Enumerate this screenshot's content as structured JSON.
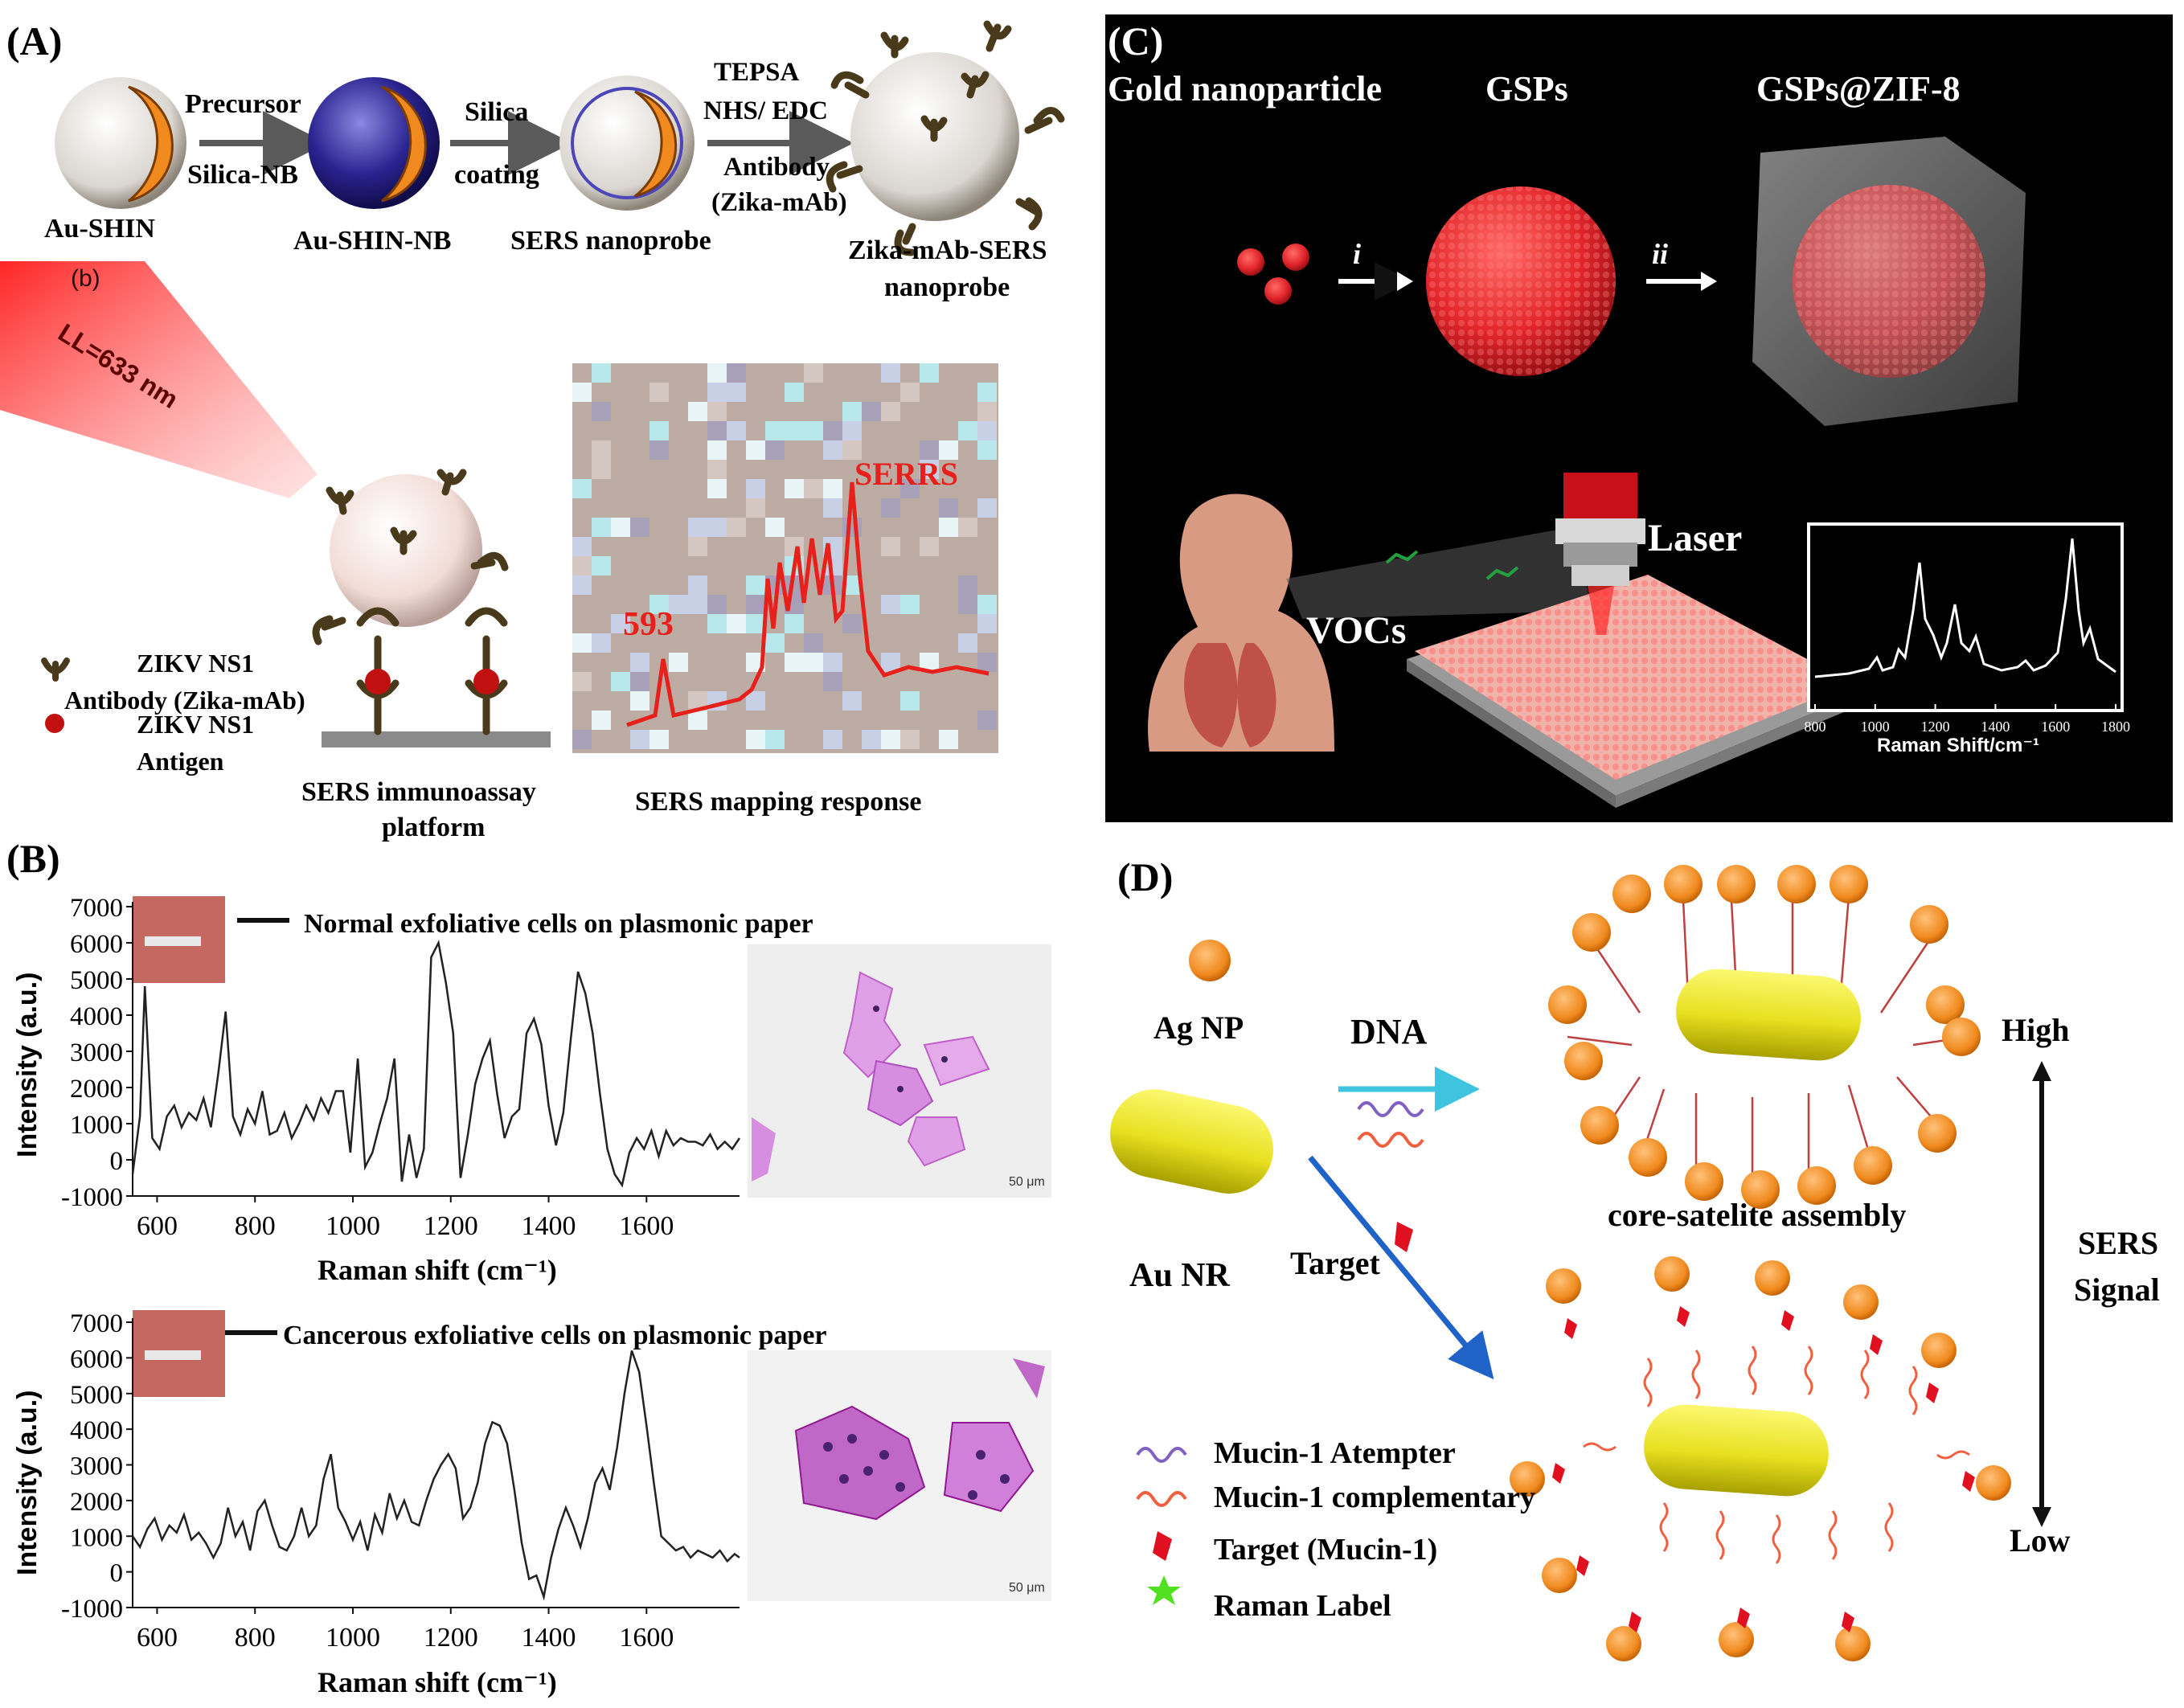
{
  "panel_a": {
    "label": "(A)",
    "sublabel": "(b)",
    "steps": {
      "au_shin": "Au-SHIN",
      "au_shin_nb": "Au-SHIN-NB",
      "sers_nanoprobe": "SERS nanoprobe",
      "zika_probe_line1": "Zika-mAb-SERS",
      "zika_probe_line2": "nanoprobe"
    },
    "arrows": {
      "a1_top": "Precursor",
      "a1_bottom": "Silica-NB",
      "a2_top": "Silica",
      "a2_bottom": "coating",
      "a3_line1": "TEPSA",
      "a3_line2": "NHS/ EDC",
      "a3_line3": "Antibody",
      "a3_line4": "(Zika-mAb)"
    },
    "laser": "LL=633 nm",
    "legend": {
      "antibody_line1": "ZIKV NS1",
      "antibody_line2": "Antibody (Zika-mAb)",
      "antigen_line1": "ZIKV NS1",
      "antigen_line2": "Antigen"
    },
    "platform_line1": "SERS immunoassay",
    "platform_line2": "platform",
    "mapping_caption": "SERS mapping response",
    "peak_label": "593",
    "serrs_label": "SERRS"
  },
  "panel_b": {
    "label": "(B)",
    "ylabel": "Intensity (a.u.)",
    "xlabel": "Raman shift (cm⁻¹)",
    "scale_bar": "50 μm",
    "spectrum_normal_legend": "Normal exfoliative cells on plasmonic paper",
    "spectrum_cancer_legend": "Cancerous exfoliative cells on plasmonic paper",
    "yticks": [
      "7000",
      "6000",
      "5000",
      "4000",
      "3000",
      "2000",
      "1000",
      "0",
      "-1000"
    ],
    "xticks": [
      "600",
      "800",
      "1000",
      "1200",
      "1400",
      "1600"
    ]
  },
  "panel_c": {
    "label": "(C)",
    "gold": "Gold nanoparticle",
    "gsps": "GSPs",
    "gsps_zif": "GSPs@ZIF-8",
    "step_i": "i",
    "step_ii": "ii",
    "laser": "Laser",
    "vocs": "VOCs",
    "inset_xlabel": "Raman Shift/cm⁻¹",
    "inset_xticks": [
      "800",
      "1000",
      "1200",
      "1400",
      "1600",
      "1800"
    ]
  },
  "panel_d": {
    "label": "(D)",
    "ag_np": "Ag NP",
    "dna": "DNA",
    "au_nr": "Au NR",
    "target": "Target",
    "assembly": "core-satelite assembly",
    "high": "High",
    "low": "Low",
    "signal_line1": "SERS",
    "signal_line2": "Signal",
    "legend": {
      "aptamer": "Mucin-1 Atempter",
      "complementary": "Mucin-1 complementary",
      "target": "Target (Mucin-1)",
      "label": "Raman Label"
    }
  },
  "colors": {
    "red_text": "#e8201c",
    "panel_c_bg": "#000000",
    "sphere_red": "#e2262c",
    "gold": "#e8e020",
    "silver_orange": "#f08a1e",
    "cyan_arrow": "#3fc4e0",
    "blue_arrow": "#1f62c8"
  },
  "chart_data": [
    {
      "type": "line",
      "title": "Normal exfoliative cells on plasmonic paper",
      "xlabel": "Raman shift (cm⁻¹)",
      "ylabel": "Intensity (a.u.)",
      "xlim": [
        550,
        1790
      ],
      "ylim": [
        -1000,
        7000
      ],
      "x": [
        550,
        565,
        575,
        590,
        605,
        620,
        635,
        650,
        665,
        680,
        695,
        710,
        725,
        740,
        755,
        770,
        785,
        800,
        815,
        830,
        845,
        860,
        875,
        890,
        905,
        920,
        935,
        950,
        965,
        980,
        995,
        1010,
        1025,
        1040,
        1055,
        1070,
        1085,
        1100,
        1115,
        1130,
        1145,
        1160,
        1175,
        1190,
        1205,
        1220,
        1235,
        1250,
        1265,
        1280,
        1295,
        1310,
        1325,
        1340,
        1355,
        1370,
        1385,
        1400,
        1415,
        1430,
        1445,
        1460,
        1475,
        1490,
        1505,
        1520,
        1535,
        1550,
        1565,
        1580,
        1595,
        1610,
        1625,
        1640,
        1655,
        1670,
        1685,
        1700,
        1715,
        1730,
        1745,
        1760,
        1775,
        1790
      ],
      "series": [
        {
          "values": [
            -400,
            1200,
            4800,
            600,
            300,
            1200,
            1500,
            900,
            1300,
            1100,
            1700,
            900,
            2400,
            4100,
            1200,
            700,
            1400,
            1000,
            1900,
            700,
            800,
            1300,
            600,
            1000,
            1500,
            1100,
            1700,
            1300,
            1900,
            1900,
            200,
            2800,
            -200,
            200,
            1000,
            1700,
            2800,
            -600,
            700,
            -500,
            300,
            5600,
            6000,
            4900,
            3500,
            -500,
            700,
            2100,
            2800,
            3300,
            1800,
            600,
            1200,
            1400,
            3500,
            3900,
            3200,
            1500,
            400,
            1300,
            3300,
            5200,
            4600,
            3500,
            1800,
            300,
            -400,
            -700,
            200,
            600,
            300,
            800,
            100,
            800,
            400,
            600,
            500,
            500,
            400,
            700,
            300,
            500,
            300,
            600
          ]
        }
      ]
    },
    {
      "type": "line",
      "title": "Cancerous exfoliative cells on plasmonic paper",
      "xlabel": "Raman shift (cm⁻¹)",
      "ylabel": "Intensity (a.u.)",
      "xlim": [
        550,
        1790
      ],
      "ylim": [
        -1000,
        7000
      ],
      "x": [
        550,
        565,
        580,
        595,
        610,
        625,
        640,
        655,
        670,
        685,
        700,
        715,
        730,
        745,
        760,
        775,
        790,
        805,
        820,
        835,
        850,
        865,
        880,
        895,
        910,
        925,
        940,
        955,
        970,
        985,
        1000,
        1015,
        1030,
        1045,
        1060,
        1075,
        1090,
        1105,
        1120,
        1135,
        1150,
        1165,
        1180,
        1195,
        1210,
        1225,
        1240,
        1255,
        1270,
        1285,
        1300,
        1315,
        1330,
        1345,
        1360,
        1375,
        1390,
        1405,
        1420,
        1435,
        1450,
        1465,
        1480,
        1495,
        1510,
        1525,
        1540,
        1555,
        1570,
        1585,
        1600,
        1615,
        1630,
        1645,
        1660,
        1675,
        1690,
        1705,
        1720,
        1735,
        1750,
        1765,
        1780,
        1790
      ],
      "series": [
        {
          "values": [
            1000,
            700,
            1200,
            1500,
            900,
            1300,
            1100,
            1600,
            900,
            1100,
            800,
            400,
            800,
            1800,
            1000,
            1400,
            600,
            1700,
            2000,
            1300,
            700,
            600,
            1000,
            1800,
            1000,
            1300,
            2600,
            3300,
            1800,
            1400,
            900,
            1400,
            600,
            1600,
            1100,
            2200,
            1500,
            2000,
            1400,
            1300,
            2000,
            2600,
            3000,
            3300,
            2900,
            1500,
            1800,
            2500,
            3600,
            4200,
            4100,
            3600,
            2300,
            800,
            -200,
            -100,
            -700,
            400,
            1200,
            1800,
            1300,
            700,
            1500,
            2500,
            2900,
            2300,
            3500,
            5000,
            6200,
            5600,
            4100,
            2500,
            1000,
            800,
            600,
            700,
            400,
            600,
            500,
            400,
            600,
            300,
            500,
            400
          ]
        }
      ]
    }
  ]
}
